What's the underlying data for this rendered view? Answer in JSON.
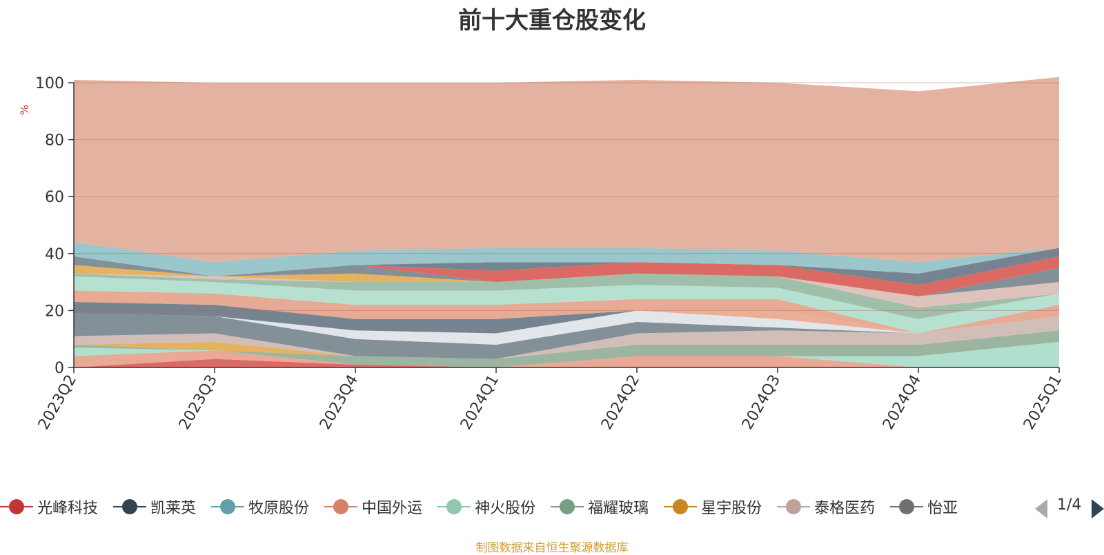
{
  "title": "前十大重仓股变化",
  "unit": "%",
  "source": "制图数据来自恒生聚源数据库",
  "pager": "1/4",
  "legend_visible": [
    {
      "name": "光峰科技",
      "color": "#c23531"
    },
    {
      "name": "凯莱英",
      "color": "#2f4554"
    },
    {
      "name": "牧原股份",
      "color": "#61a0a8"
    },
    {
      "name": "中国外运",
      "color": "#d48265"
    },
    {
      "name": "神火股份",
      "color": "#91c7ae"
    },
    {
      "name": "福耀玻璃",
      "color": "#749f83"
    },
    {
      "name": "星宇股份",
      "color": "#ca8622"
    },
    {
      "name": "泰格医药",
      "color": "#bda29a"
    },
    {
      "name": "怡亚",
      "color": "#6e7074"
    }
  ],
  "chart_data": {
    "type": "area",
    "stacked": true,
    "x": [
      "2023Q2",
      "2023Q3",
      "2023Q4",
      "2024Q1",
      "2024Q2",
      "2024Q3",
      "2024Q4",
      "2025Q1"
    ],
    "ylim": [
      0,
      100
    ],
    "yticks": [
      0,
      20,
      40,
      60,
      80,
      100
    ],
    "ylabel": "%",
    "grid": true,
    "bands": [
      {
        "color": "#d5504a",
        "opacity": 0.85,
        "values": [
          0,
          3,
          1,
          0,
          0,
          0,
          0,
          0
        ]
      },
      {
        "color": "#e59a82",
        "opacity": 0.85,
        "values": [
          4,
          3,
          0,
          0,
          4,
          4,
          0,
          0
        ]
      },
      {
        "color": "#a3d9c6",
        "opacity": 0.85,
        "values": [
          3,
          0,
          0,
          0,
          0,
          0,
          4,
          9
        ]
      },
      {
        "color": "#89a88f",
        "opacity": 0.85,
        "values": [
          1,
          0,
          3,
          3,
          4,
          4,
          4,
          4
        ]
      },
      {
        "color": "#e0a447",
        "opacity": 0.85,
        "values": [
          0,
          3,
          0,
          0,
          0,
          0,
          0,
          0
        ]
      },
      {
        "color": "#c9b3ab",
        "opacity": 0.85,
        "values": [
          3,
          3,
          0,
          0,
          4,
          5,
          4,
          5
        ]
      },
      {
        "color": "#6f7c86",
        "opacity": 0.85,
        "values": [
          8,
          6,
          6,
          5,
          4,
          1,
          0,
          0
        ]
      },
      {
        "color": "#dde1e6",
        "opacity": 0.85,
        "values": [
          0,
          0,
          3,
          4,
          4,
          3,
          0,
          0
        ]
      },
      {
        "color": "#e8a184",
        "opacity": 0.85,
        "values": [
          0,
          0,
          0,
          0,
          0,
          3,
          0,
          0
        ]
      },
      {
        "color": "#5e6f7e",
        "opacity": 0.85,
        "values": [
          4,
          4,
          4,
          5,
          0,
          0,
          0,
          0
        ]
      },
      {
        "color": "#e39b82",
        "opacity": 0.85,
        "values": [
          4,
          4,
          5,
          5,
          4,
          4,
          0,
          4
        ]
      },
      {
        "color": "#a9dbc7",
        "opacity": 0.85,
        "values": [
          5,
          4,
          5,
          5,
          5,
          4,
          5,
          4
        ]
      },
      {
        "color": "#8fb49b",
        "opacity": 0.85,
        "values": [
          1,
          1,
          3,
          3,
          4,
          4,
          4,
          0
        ]
      },
      {
        "color": "#d7b9b0",
        "opacity": 0.85,
        "values": [
          0,
          1,
          0,
          0,
          0,
          0,
          4,
          4
        ]
      },
      {
        "color": "#e0a447",
        "opacity": 0.85,
        "values": [
          3,
          0,
          3,
          0,
          0,
          0,
          0,
          0
        ]
      },
      {
        "color": "#6f7c86",
        "opacity": 0.85,
        "values": [
          3,
          0,
          3,
          0,
          0,
          0,
          0,
          5
        ]
      },
      {
        "color": "#d5504a",
        "opacity": 0.85,
        "values": [
          0,
          0,
          0,
          4,
          4,
          4,
          4,
          4
        ]
      },
      {
        "color": "#5e6f7e",
        "opacity": 0.85,
        "values": [
          0,
          0,
          0,
          3,
          0,
          0,
          4,
          3
        ]
      },
      {
        "color": "#88bcc3",
        "opacity": 0.85,
        "values": [
          5,
          5,
          5,
          5,
          5,
          5,
          4,
          0
        ]
      },
      {
        "color": "#dfa590",
        "opacity": 0.85,
        "values": [
          57,
          63,
          59,
          58,
          59,
          59,
          60,
          60
        ]
      }
    ]
  }
}
